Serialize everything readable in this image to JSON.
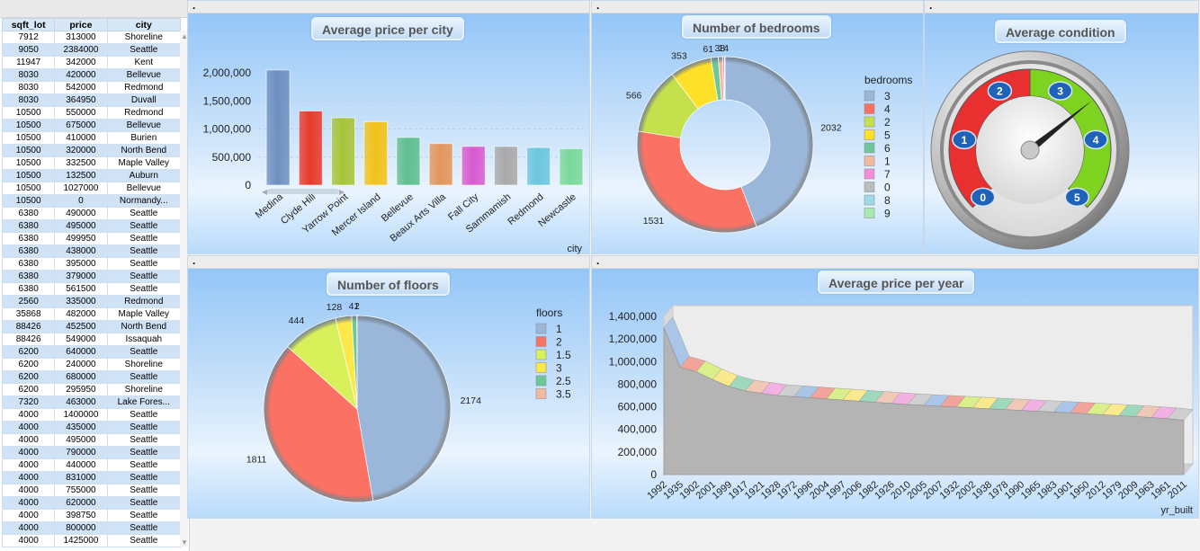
{
  "table": {
    "columns": [
      "sqft_lot",
      "price",
      "city"
    ],
    "rows": [
      [
        "7912",
        "313000",
        "Shoreline"
      ],
      [
        "9050",
        "2384000",
        "Seattle"
      ],
      [
        "11947",
        "342000",
        "Kent"
      ],
      [
        "8030",
        "420000",
        "Bellevue"
      ],
      [
        "8030",
        "542000",
        "Redmond"
      ],
      [
        "8030",
        "364950",
        "Duvall"
      ],
      [
        "10500",
        "550000",
        "Redmond"
      ],
      [
        "10500",
        "675000",
        "Bellevue"
      ],
      [
        "10500",
        "410000",
        "Burien"
      ],
      [
        "10500",
        "320000",
        "North Bend"
      ],
      [
        "10500",
        "332500",
        "Maple Valley"
      ],
      [
        "10500",
        "132500",
        "Auburn"
      ],
      [
        "10500",
        "1027000",
        "Bellevue"
      ],
      [
        "10500",
        "0",
        "Normandy..."
      ],
      [
        "6380",
        "490000",
        "Seattle"
      ],
      [
        "6380",
        "495000",
        "Seattle"
      ],
      [
        "6380",
        "499950",
        "Seattle"
      ],
      [
        "6380",
        "438000",
        "Seattle"
      ],
      [
        "6380",
        "395000",
        "Seattle"
      ],
      [
        "6380",
        "379000",
        "Seattle"
      ],
      [
        "6380",
        "561500",
        "Seattle"
      ],
      [
        "2560",
        "335000",
        "Redmond"
      ],
      [
        "35868",
        "482000",
        "Maple Valley"
      ],
      [
        "88426",
        "452500",
        "North Bend"
      ],
      [
        "88426",
        "549000",
        "Issaquah"
      ],
      [
        "6200",
        "640000",
        "Seattle"
      ],
      [
        "6200",
        "240000",
        "Shoreline"
      ],
      [
        "6200",
        "680000",
        "Seattle"
      ],
      [
        "6200",
        "295950",
        "Shoreline"
      ],
      [
        "7320",
        "463000",
        "Lake Fores..."
      ],
      [
        "4000",
        "1400000",
        "Seattle"
      ],
      [
        "4000",
        "435000",
        "Seattle"
      ],
      [
        "4000",
        "495000",
        "Seattle"
      ],
      [
        "4000",
        "790000",
        "Seattle"
      ],
      [
        "4000",
        "440000",
        "Seattle"
      ],
      [
        "4000",
        "831000",
        "Seattle"
      ],
      [
        "4000",
        "755000",
        "Seattle"
      ],
      [
        "4000",
        "620000",
        "Seattle"
      ],
      [
        "4000",
        "398750",
        "Seattle"
      ],
      [
        "4000",
        "800000",
        "Seattle"
      ],
      [
        "4000",
        "1425000",
        "Seattle"
      ]
    ]
  },
  "panels": {
    "city": {
      "title": "Average price per city",
      "strip": "."
    },
    "bedrooms": {
      "title": "Number of bedrooms",
      "strip": "."
    },
    "condition": {
      "title": "Average condition",
      "strip": "."
    },
    "floors": {
      "title": "Number of floors",
      "strip": "."
    },
    "year": {
      "title": "Average price per year",
      "strip": "."
    }
  },
  "chart_data": [
    {
      "type": "bar",
      "title": "Average price per city",
      "xlabel": "city",
      "ylabel": "",
      "ylim": [
        0,
        2000000
      ],
      "yticks": [
        "2,000,000",
        "1,500,000",
        "1,000,000",
        "500,000",
        "0"
      ],
      "categories": [
        "Medina",
        "Clyde Hill",
        "Yarrow Point",
        "Mercer Island",
        "Bellevue",
        "Beaux Arts Villa",
        "Fall City",
        "Sammamish",
        "Redmond",
        "Newcastle"
      ],
      "values": [
        2050000,
        1320000,
        1200000,
        1130000,
        850000,
        740000,
        690000,
        690000,
        670000,
        650000
      ],
      "colors": [
        "#6f90c0",
        "#e83a2b",
        "#a8c437",
        "#f2c21a",
        "#5fbf8f",
        "#e2965c",
        "#d85ad0",
        "#a9a9a9",
        "#6cc6df",
        "#7ad89a"
      ]
    },
    {
      "type": "pie",
      "title": "Number of bedrooms",
      "legend_title": "bedrooms",
      "labels": [
        "3",
        "4",
        "2",
        "5",
        "6",
        "1",
        "7",
        "0",
        "8",
        "9"
      ],
      "values": [
        2032,
        1531,
        566,
        353,
        61,
        38,
        14,
        2,
        2,
        1
      ],
      "slice_labels": [
        "2032",
        "1531",
        "566",
        "353",
        "61",
        "38",
        "14",
        "",
        "",
        ""
      ],
      "colors": [
        "#9ab6d8",
        "#fb7163",
        "#c4e04c",
        "#fde027",
        "#6ec79b",
        "#f2b9a0",
        "#f08fd8",
        "#bcbcbc",
        "#9fd8e8",
        "#a8e8b2"
      ]
    },
    {
      "type": "gauge",
      "title": "Average condition",
      "min": 0,
      "max": 5,
      "ticks": [
        "0",
        "1",
        "2",
        "3",
        "4",
        "5"
      ],
      "value": 3.45,
      "colors": {
        "low": "#e83030",
        "high": "#7ed321"
      }
    },
    {
      "type": "pie",
      "title": "Number of floors",
      "legend_title": "floors",
      "labels": [
        "1",
        "2",
        "1.5",
        "3",
        "2.5",
        "3.5"
      ],
      "values": [
        2174,
        1811,
        444,
        128,
        41,
        2
      ],
      "slice_labels": [
        "2174",
        "1811",
        "444",
        "128",
        "41",
        "2"
      ],
      "colors": [
        "#9ab6d8",
        "#fb7163",
        "#d8f05a",
        "#fde84a",
        "#6ec79b",
        "#f2b9a0"
      ]
    },
    {
      "type": "area",
      "title": "Average price per year",
      "xlabel": "yr_built",
      "ylim": [
        0,
        1400000
      ],
      "yticks": [
        "1,400,000",
        "1,200,000",
        "1,000,000",
        "800,000",
        "600,000",
        "400,000",
        "200,000",
        "0"
      ],
      "categories": [
        "1992",
        "1935",
        "1902",
        "2001",
        "1999",
        "1917",
        "1921",
        "1928",
        "1972",
        "1996",
        "2004",
        "1997",
        "2006",
        "1982",
        "1926",
        "2010",
        "2005",
        "2007",
        "1932",
        "2002",
        "1938",
        "1978",
        "1990",
        "1965",
        "1983",
        "1901",
        "1950",
        "2012",
        "1979",
        "2009",
        "1963",
        "1961",
        "2011"
      ],
      "values": [
        1300000,
        950000,
        910000,
        840000,
        780000,
        740000,
        720000,
        700000,
        690000,
        680000,
        670000,
        660000,
        650000,
        640000,
        630000,
        620000,
        612000,
        605000,
        598000,
        590000,
        582000,
        575000,
        568000,
        560000,
        553000,
        546000,
        538000,
        530000,
        522000,
        514000,
        505000,
        495000,
        480000
      ]
    }
  ]
}
